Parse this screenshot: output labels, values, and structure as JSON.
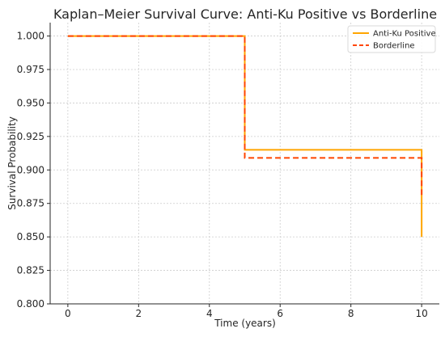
{
  "chart_data": {
    "type": "line",
    "title": "Kaplan–Meier Survival Curve: Anti-Ku Positive vs Borderline",
    "xlabel": "Time (years)",
    "ylabel": "Survival Probability",
    "xlim": [
      -0.5,
      10.5
    ],
    "ylim": [
      0.8,
      1.01
    ],
    "xticks": [
      0,
      2,
      4,
      6,
      8,
      10
    ],
    "xtick_labels": [
      "0",
      "2",
      "4",
      "6",
      "8",
      "10"
    ],
    "yticks": [
      0.8,
      0.825,
      0.85,
      0.875,
      0.9,
      0.925,
      0.95,
      0.975,
      1.0
    ],
    "ytick_labels": [
      "0.800",
      "0.825",
      "0.850",
      "0.875",
      "0.900",
      "0.925",
      "0.950",
      "0.975",
      "1.000"
    ],
    "grid": true,
    "legend_position": "top-right",
    "step": "post",
    "series": [
      {
        "name": "Anti-Ku Positive",
        "color": "#FFA500",
        "style": "solid",
        "x": [
          0,
          5,
          10,
          10
        ],
        "y": [
          1.0,
          0.915,
          0.915,
          0.85
        ]
      },
      {
        "name": "Borderline",
        "color": "#FF4500",
        "style": "dashed",
        "x": [
          0,
          5,
          10,
          10
        ],
        "y": [
          1.0,
          0.909,
          0.909,
          0.879
        ]
      }
    ]
  }
}
